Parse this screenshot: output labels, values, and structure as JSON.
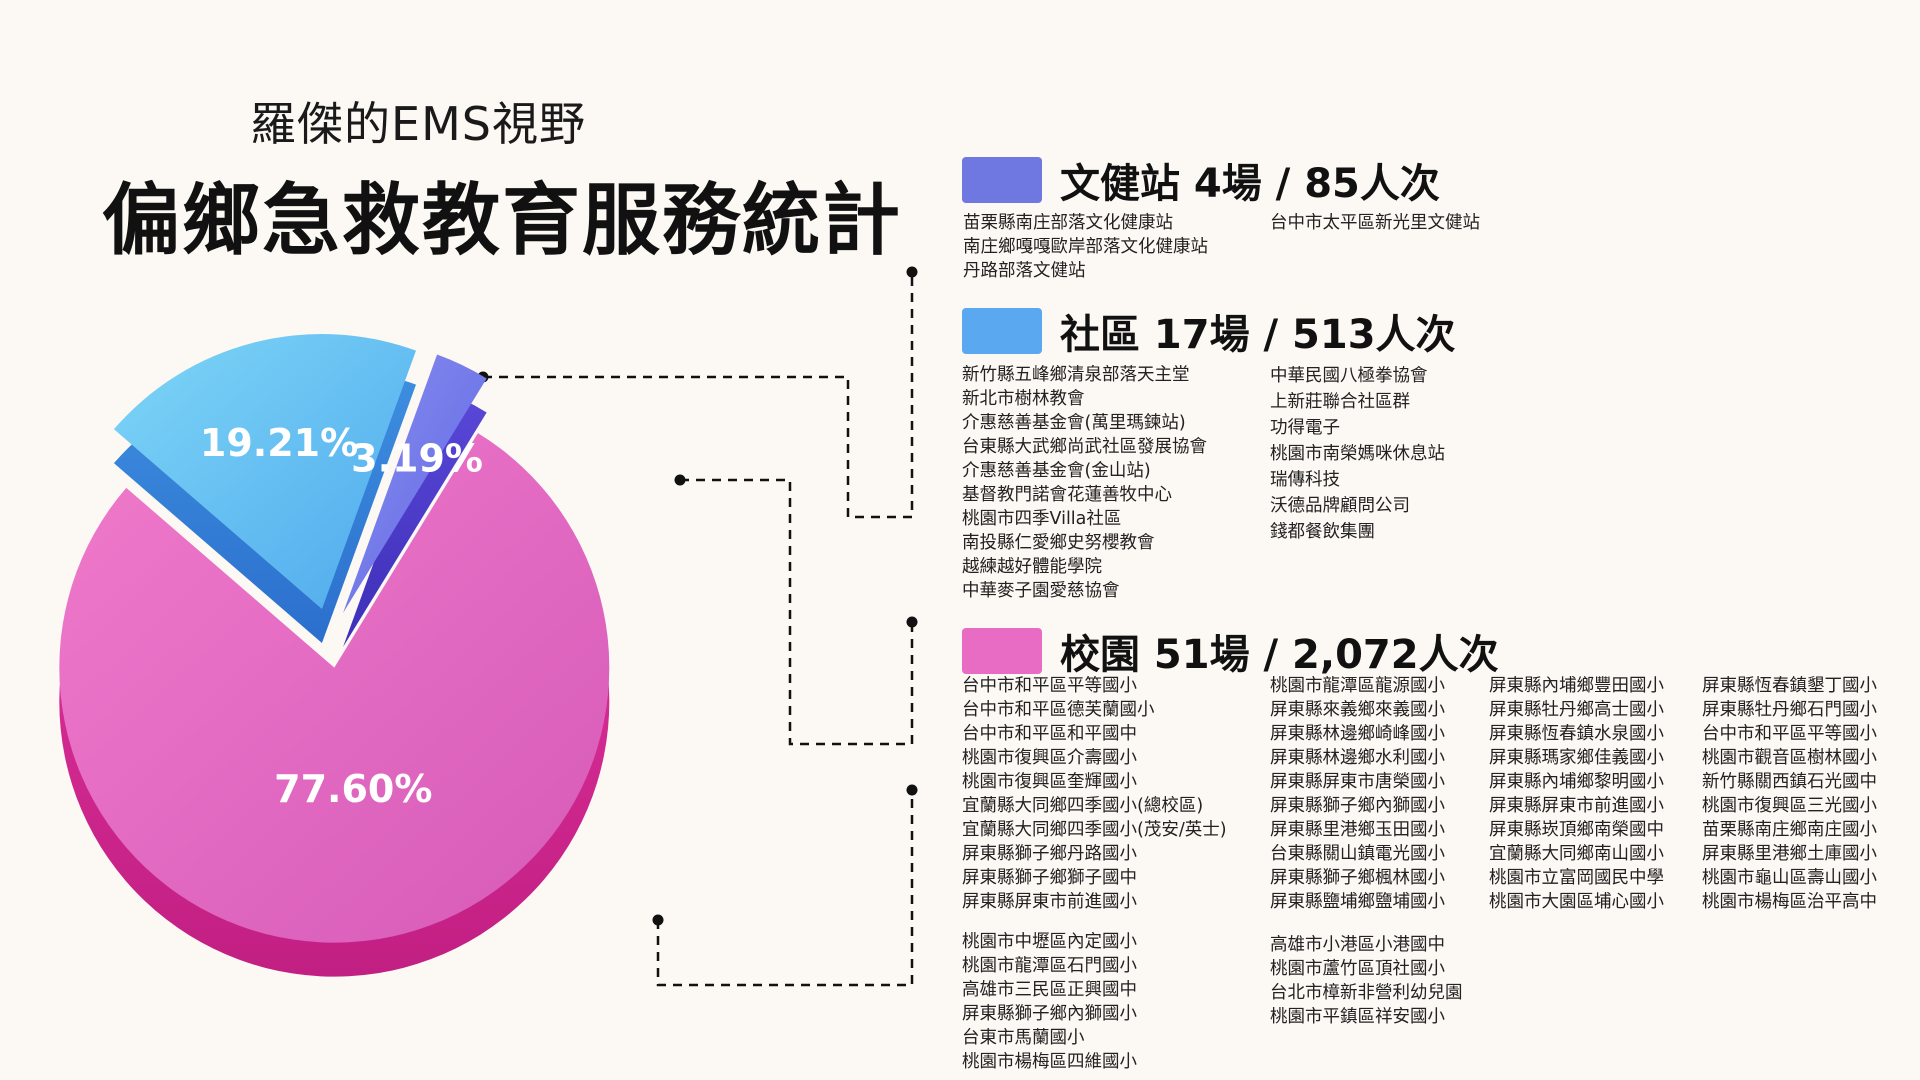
{
  "header": {
    "subtitle": "羅傑的EMS視野",
    "title": "偏鄉急救教育服務統計"
  },
  "chart_data": {
    "type": "pie",
    "categories": [
      "文健站",
      "社區",
      "校園"
    ],
    "values": [
      3.19,
      19.21,
      77.6
    ],
    "labels": [
      "3.19%",
      "19.21%",
      "77.60%"
    ],
    "colors": [
      "#6f78e0",
      "#5ab8ef",
      "#e86bc4"
    ]
  },
  "sections": {
    "station": {
      "color": "#6f78e0",
      "heading": "文健站   4場 / 85人次",
      "col1": [
        "苗栗縣南庄部落文化健康站",
        "南庄鄉嘎嘎歐岸部落文化健康站",
        "丹路部落文健站"
      ],
      "col2": [
        "台中市太平區新光里文健站"
      ]
    },
    "community": {
      "color": "#5aa8f0",
      "heading": "社區  17場  / 513人次",
      "col1": [
        "新竹縣五峰鄉清泉部落天主堂",
        "新北市樹林教會",
        "介惠慈善基金會(萬里瑪鍊站)",
        "台東縣大武鄉尚武社區發展協會",
        "介惠慈善基金會(金山站)",
        "基督教門諾會花蓮善牧中心",
        "桃園市四季Villa社區",
        "南投縣仁愛鄉史努櫻教會",
        "越練越好體能學院",
        "中華麥子園愛慈協會"
      ],
      "col2": [
        "中華民國八極拳協會",
        "上新莊聯合社區群",
        "功得電子",
        "桃園市南榮媽咪休息站",
        "瑞傳科技",
        "沃德品牌顧問公司",
        "錢都餐飲集團"
      ]
    },
    "school": {
      "color": "#e86bc4",
      "heading": "校園   51場 / 2,072人次",
      "col1a": [
        "台中市和平區平等國小",
        "台中市和平區德芙蘭國小",
        "台中市和平區和平國中",
        "桃園市復興區介壽國小",
        "桃園市復興區奎輝國小",
        "宜蘭縣大同鄉四季國小(總校區)",
        "宜蘭縣大同鄉四季國小(茂安/英士)",
        "屏東縣獅子鄉丹路國小",
        "屏東縣獅子鄉獅子國中",
        "屏東縣屏東市前進國小"
      ],
      "col1b": [
        "桃園市中壢區內定國小",
        "桃園市龍潭區石門國小",
        "高雄市三民區正興國中",
        "屏東縣獅子鄉內獅國小",
        "台東市馬蘭國小",
        "桃園市楊梅區四維國小"
      ],
      "col2a": [
        "桃園市龍潭區龍源國小",
        "屏東縣來義鄉來義國小",
        "屏東縣林邊鄉崎峰國小",
        "屏東縣林邊鄉水利國小",
        "屏東縣屏東市唐榮國小",
        "屏東縣獅子鄉內獅國小",
        "屏東縣里港鄉玉田國小",
        "台東縣關山鎮電光國小",
        "屏東縣獅子鄉楓林國小",
        "屏東縣鹽埔鄉鹽埔國小"
      ],
      "col2b": [
        "高雄市小港區小港國中",
        "桃園市蘆竹區頂社國小",
        "台北市樟新非營利幼兒園",
        "桃園市平鎮區祥安國小"
      ],
      "col3": [
        "屏東縣內埔鄉豐田國小",
        "屏東縣牡丹鄉高士國小",
        "屏東縣恆春鎮水泉國小",
        "屏東縣瑪家鄉佳義國小",
        "屏東縣內埔鄉黎明國小",
        "屏東縣屏東市前進國小",
        "屏東縣崁頂鄉南榮國中",
        "宜蘭縣大同鄉南山國小",
        "桃園市立富岡國民中學",
        "桃園市大園區埔心國小"
      ],
      "col4": [
        "屏東縣恆春鎮墾丁國小",
        "屏東縣牡丹鄉石門國小",
        "台中市和平區平等國小",
        "桃園市觀音區樹林國小",
        "新竹縣關西鎮石光國中",
        "桃園市復興區三光國小",
        "苗栗縣南庄鄉南庄國小",
        "屏東縣里港鄉土庫國小",
        "桃園市龜山區壽山國小",
        "桃園市楊梅區治平高中"
      ]
    }
  }
}
